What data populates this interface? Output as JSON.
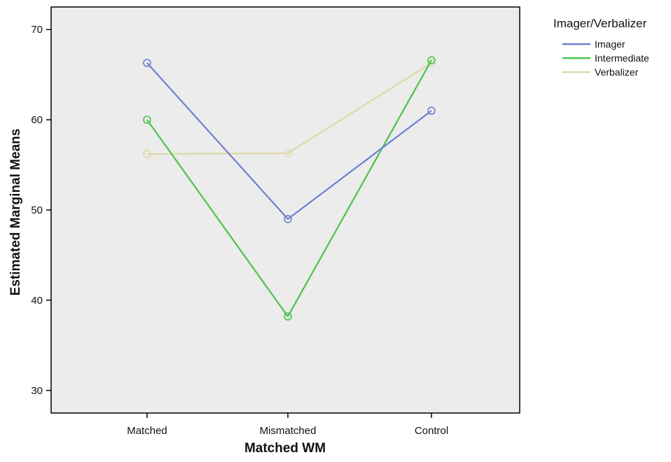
{
  "chart_data": {
    "type": "line",
    "xlabel": "Matched WM",
    "ylabel": "Estimated Marginal Means",
    "categories": [
      "Matched",
      "Mismatched",
      "Control"
    ],
    "ylim": [
      27.5,
      72.5
    ],
    "yticks": [
      30,
      40,
      50,
      60,
      70
    ],
    "ytick_labels": [
      "30",
      "40",
      "50",
      "60",
      "70"
    ],
    "grid": false,
    "legend": {
      "title": "Imager/Verbalizer",
      "placement": "outside-top-right"
    },
    "series": [
      {
        "name": "Imager",
        "color": "#6f7fcf",
        "values": [
          66.3,
          49.0,
          61.0
        ]
      },
      {
        "name": "Intermediate",
        "color": "#4cc24c",
        "values": [
          60.0,
          38.2,
          66.6
        ]
      },
      {
        "name": "Verbalizer",
        "color": "#ddd9a8",
        "values": [
          56.2,
          56.3,
          66.3
        ]
      }
    ],
    "plot_background": "#ececec",
    "marker": "open-circle"
  }
}
